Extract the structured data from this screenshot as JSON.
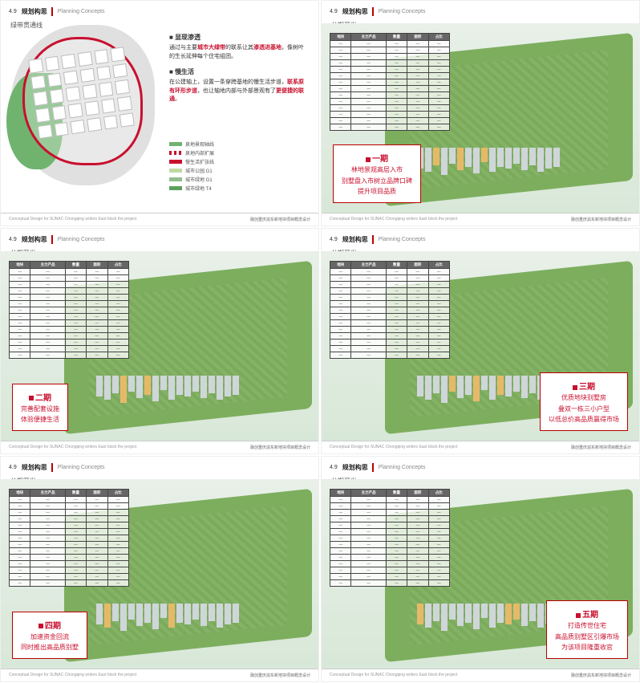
{
  "section": {
    "num": "4.9",
    "zh": "规划构思",
    "en": "Planning Concepts"
  },
  "footer": {
    "en": "Conceptual Design for SUNAC Chongqing writers East block the project",
    "zh": "融创重庆渝东新地块项目概念设计"
  },
  "panel0": {
    "subtitle": "绿带贯通线",
    "h1": "显现渗透",
    "p1a": "通过与主要",
    "p1red": "城市大绿带",
    "p1b": "的联系让其",
    "p1red2": "渗透进基地",
    "p1c": "，像树叶的生长延伸每个住宅组团。",
    "h2": "慢生活",
    "p2a": "在公建轴上，设置一条穿跨基地的慢生活步道，",
    "p2red": "联系原有环形步道",
    "p2b": "，也让轴地内部与外部景观有了",
    "p2red2": "更便捷的联通",
    "p2c": "。",
    "legend": [
      {
        "color": "#6FB36F",
        "dash": false,
        "label": "泉地景观轴线"
      },
      {
        "color": "#c8102e",
        "dash": true,
        "label": "泉地内部扩展"
      },
      {
        "color": "#c8102e",
        "dash": false,
        "label": "慢生活扩张线"
      },
      {
        "color": "#BFD9A3",
        "dash": false,
        "label": "城市公园 G1"
      },
      {
        "color": "#8FBF8F",
        "dash": false,
        "label": "城市绿地 G1"
      },
      {
        "color": "#5FA05F",
        "dash": false,
        "label": "城市绿地 T4"
      }
    ]
  },
  "phasedTitle": "分期开发",
  "tableHeaders": [
    "地块",
    "主力产品",
    "数量",
    "面积",
    "占比"
  ],
  "tableRowTemplate": [
    "—",
    "—",
    "—",
    "—",
    "—"
  ],
  "tableRowCount": 14,
  "phases": [
    {
      "num": "一期",
      "lines": [
        "林地景观高层入市",
        "别墅盘入市树立品牌口碑",
        "提升项目品质"
      ],
      "callout_pos": "bl",
      "hl_idx": [
        2,
        5,
        8
      ]
    },
    {
      "num": "二期",
      "lines": [
        "完善配套设施",
        "体验便捷生活"
      ],
      "callout_pos": "bl",
      "hl_idx": [
        3,
        6
      ]
    },
    {
      "num": "三期",
      "lines": [
        "优质地块别墅房",
        "叠双一栋三小户型",
        "以低总价高品质赢得市场"
      ],
      "callout_pos": "br",
      "hl_idx": [
        4,
        7,
        10
      ]
    },
    {
      "num": "四期",
      "lines": [
        "加速资金回流",
        "同时推出高品质别墅"
      ],
      "callout_pos": "bl",
      "hl_idx": [
        1,
        9
      ]
    },
    {
      "num": "五期",
      "lines": [
        "打造传世住宅",
        "高品质别墅区引爆市场",
        "为该项目隆重收官"
      ],
      "callout_pos": "br",
      "hl_idx": [
        0,
        11,
        12
      ]
    }
  ],
  "buildingHeights": [
    26,
    30,
    22,
    34,
    20,
    28,
    24,
    32,
    18,
    30,
    24,
    26,
    20,
    28,
    22,
    30,
    26,
    24
  ],
  "colors": {
    "brand_red": "#c8102e",
    "terrain": "#7DAE5E",
    "building": "#cfd6d9",
    "highlight": "#e6b96a"
  }
}
